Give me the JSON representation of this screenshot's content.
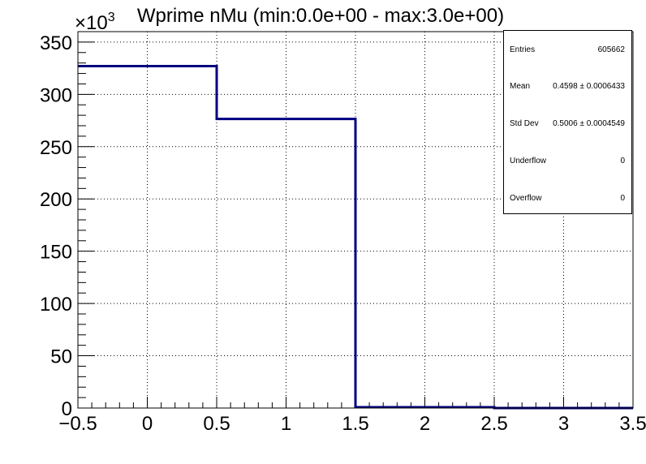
{
  "chart_data": {
    "type": "bar",
    "title": "Wprime nMu (min:0.0e+00 - max:3.0e+00)",
    "xlabel": "",
    "ylabel": "",
    "y_multiplier": "×10",
    "y_multiplier_exp": "3",
    "xlim": [
      -0.5,
      3.5
    ],
    "ylim": [
      0,
      360
    ],
    "bins": [
      {
        "low": -0.5,
        "high": 0.5,
        "value": 327
      },
      {
        "low": 0.5,
        "high": 1.5,
        "value": 276.5
      },
      {
        "low": 1.5,
        "high": 2.5,
        "value": 0.8
      },
      {
        "low": 2.5,
        "high": 3.5,
        "value": 0
      }
    ],
    "x_ticks": [
      {
        "v": -0.5,
        "label": "−0.5"
      },
      {
        "v": 0,
        "label": "0"
      },
      {
        "v": 0.5,
        "label": "0.5"
      },
      {
        "v": 1,
        "label": "1"
      },
      {
        "v": 1.5,
        "label": "1.5"
      },
      {
        "v": 2,
        "label": "2"
      },
      {
        "v": 2.5,
        "label": "2.5"
      },
      {
        "v": 3,
        "label": "3"
      },
      {
        "v": 3.5,
        "label": "3.5"
      }
    ],
    "y_ticks": [
      {
        "v": 0,
        "label": "0"
      },
      {
        "v": 50,
        "label": "50"
      },
      {
        "v": 100,
        "label": "100"
      },
      {
        "v": 150,
        "label": "150"
      },
      {
        "v": 200,
        "label": "200"
      },
      {
        "v": 250,
        "label": "250"
      },
      {
        "v": 300,
        "label": "300"
      },
      {
        "v": 350,
        "label": "350"
      }
    ],
    "grid": true,
    "line_color": "#000080"
  },
  "stats": {
    "entries_label": "Entries",
    "entries_value": "605662",
    "mean_label": "Mean",
    "mean_value": "0.4598 ± 0.0006433",
    "std_label": "Std Dev",
    "std_value": "0.5006 ± 0.0004549",
    "underflow_label": "Underflow",
    "underflow_value": "0",
    "overflow_label": "Overflow",
    "overflow_value": "0"
  }
}
